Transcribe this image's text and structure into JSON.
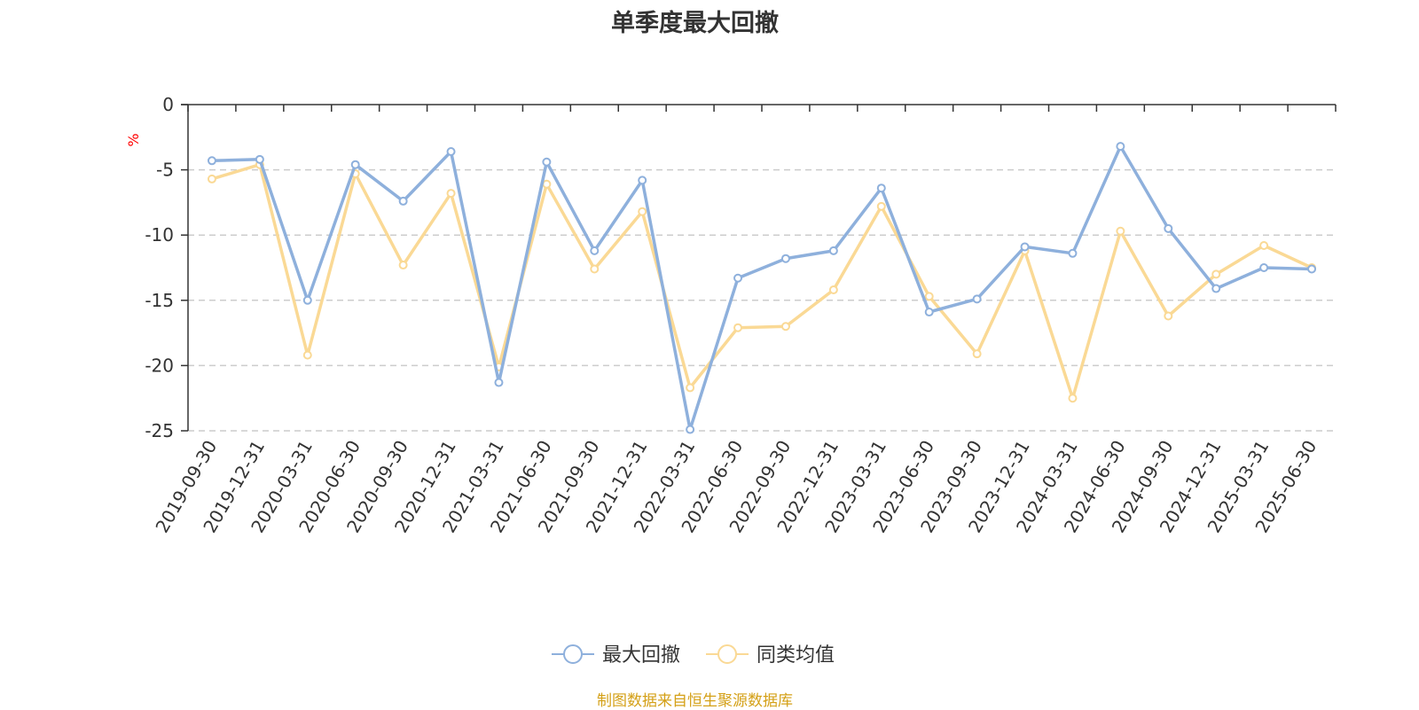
{
  "chart_data": {
    "type": "line",
    "title": "单季度最大回撤",
    "ylabel": "%",
    "xlabel": "",
    "ylim": [
      -25,
      0
    ],
    "yticks": [
      0,
      -5,
      -10,
      -15,
      -20,
      -25
    ],
    "grid": true,
    "legend_position": "bottom",
    "categories": [
      "2019-09-30",
      "2019-12-31",
      "2020-03-31",
      "2020-06-30",
      "2020-09-30",
      "2020-12-31",
      "2021-03-31",
      "2021-06-30",
      "2021-09-30",
      "2021-12-31",
      "2022-03-31",
      "2022-06-30",
      "2022-09-30",
      "2022-12-31",
      "2023-03-31",
      "2023-06-30",
      "2023-09-30",
      "2023-12-31",
      "2024-03-31",
      "2024-06-30",
      "2024-09-30",
      "2024-12-31",
      "2025-03-31",
      "2025-06-30"
    ],
    "series": [
      {
        "name": "最大回撤",
        "color": "#8eb0dc",
        "values": [
          -4.3,
          -4.2,
          -15.0,
          -4.6,
          -7.4,
          -3.6,
          -21.3,
          -4.4,
          -11.2,
          -5.8,
          -24.9,
          -13.3,
          -11.8,
          -11.2,
          -6.4,
          -15.9,
          -14.9,
          -10.9,
          -11.4,
          -3.2,
          -9.5,
          -14.1,
          -12.5,
          -12.6
        ]
      },
      {
        "name": "同类均值",
        "color": "#fad995",
        "values": [
          -5.7,
          -4.6,
          -19.2,
          -5.3,
          -12.3,
          -6.8,
          -20.1,
          -6.1,
          -12.6,
          -8.2,
          -21.7,
          -17.1,
          -17.0,
          -14.2,
          -7.8,
          -14.7,
          -19.1,
          -11.2,
          -22.5,
          -9.7,
          -16.2,
          -13.0,
          -10.8,
          -12.5
        ]
      }
    ],
    "source_note": "制图数据来自恒生聚源数据库",
    "colors": {
      "axis": "#333333",
      "grid": "#cccccc",
      "unit_label": "#ff0000",
      "source_note": "#d4a017"
    }
  }
}
